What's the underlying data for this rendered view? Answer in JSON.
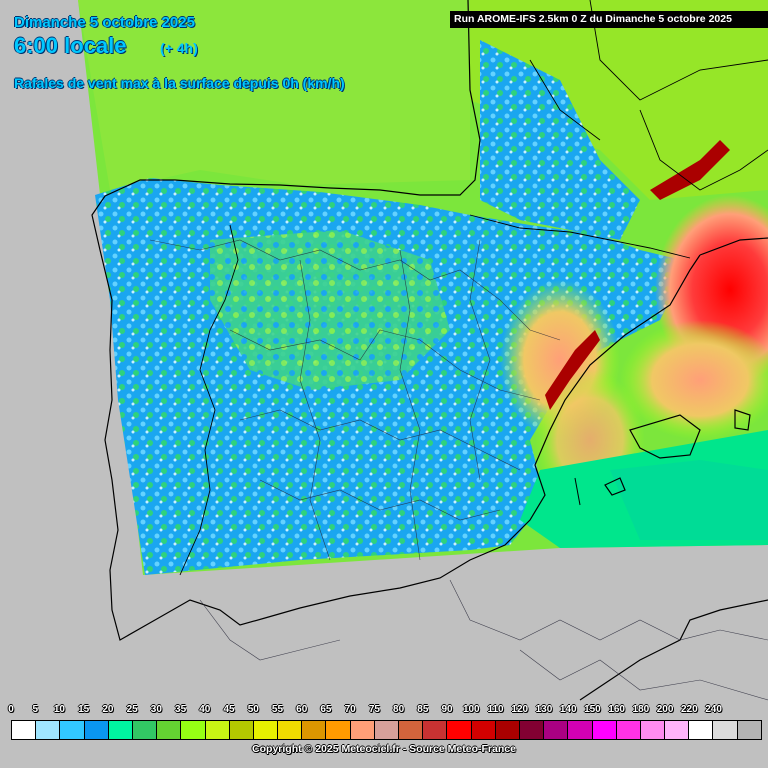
{
  "header": {
    "date": "Dimanche 5 octobre 2025",
    "time": "6:00 locale",
    "offset": "(+ 4h)",
    "parameter": "Rafales de vent max à la surface depuis 0h (km/h)",
    "run": "Run AROME-IFS 2.5km 0 Z du Dimanche 5 octobre 2025"
  },
  "legend": {
    "labels": [
      "0",
      "5",
      "10",
      "15",
      "20",
      "25",
      "30",
      "35",
      "40",
      "45",
      "50",
      "55",
      "60",
      "65",
      "70",
      "75",
      "80",
      "85",
      "90",
      "100",
      "110",
      "120",
      "130",
      "140",
      "150",
      "160",
      "180",
      "200",
      "220",
      "240"
    ],
    "colors": [
      "#ffffff",
      "#a0e6ff",
      "#32c8ff",
      "#0a96f0",
      "#00f5a0",
      "#32c864",
      "#64d232",
      "#96ff14",
      "#c8f514",
      "#b4c800",
      "#e6f000",
      "#f0dc00",
      "#dc9600",
      "#ff9b00",
      "#ff9f78",
      "#d7a09a",
      "#d2643c",
      "#c83232",
      "#ff0000",
      "#d20000",
      "#aa0000",
      "#820032",
      "#aa0082",
      "#d200b4",
      "#ff00ff",
      "#ff32e6",
      "#ff8cf0",
      "#ffb4fa",
      "#ffffff",
      "#dcdcdc",
      "#b4b4b4"
    ]
  },
  "copyright": "Copyright © 2025 Meteociel.fr - Source Meteo-France",
  "map": {
    "background_color": "#c0c0c0",
    "model_field_colors": {
      "sea_north": "#7ce63c",
      "land_calm": "#14a0f0",
      "land_moderate": "#3cd28c",
      "gust_strong": "#ff3030",
      "gust_moderate": "#ff9b5a",
      "sea_south": "#00e68c"
    }
  }
}
